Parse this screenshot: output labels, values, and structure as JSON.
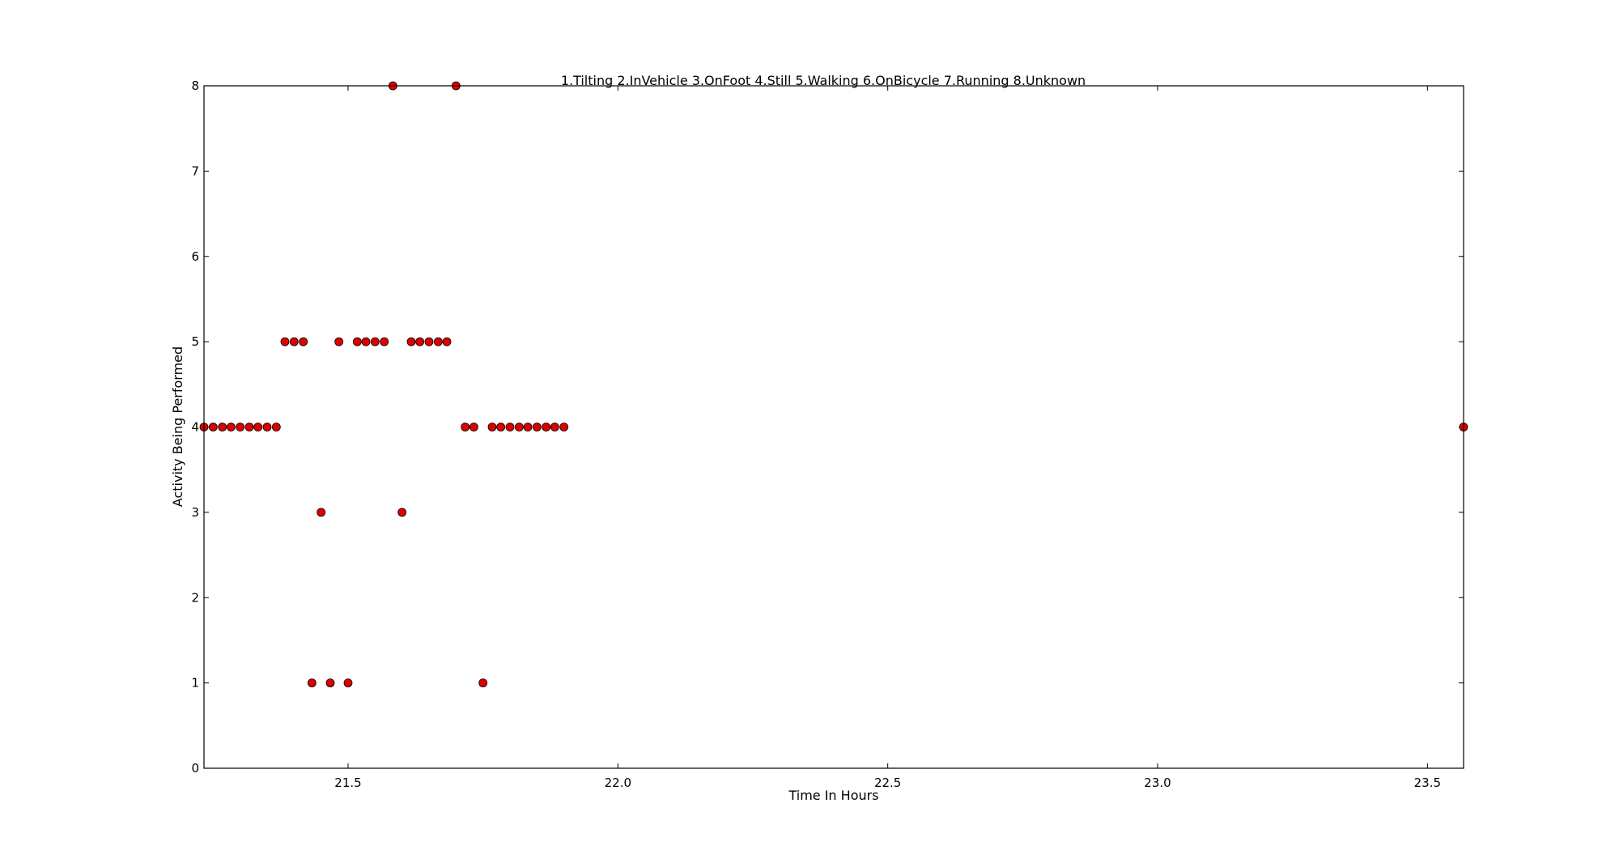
{
  "chart_data": {
    "type": "scatter",
    "title": "1.Tilting 2.InVehicle 3.OnFoot 4.Still 5.Walking 6.OnBicycle 7.Running 8.Unknown",
    "xlabel": "Time In Hours",
    "ylabel": "Activity Being Performed",
    "xlim": [
      21.233,
      23.567
    ],
    "ylim": [
      0,
      8
    ],
    "x_ticks": [
      21.5,
      22.0,
      22.5,
      23.0,
      23.5
    ],
    "x_tick_labels": [
      "21.5",
      "22.0",
      "22.5",
      "23.0",
      "23.5"
    ],
    "y_ticks": [
      0,
      1,
      2,
      3,
      4,
      5,
      6,
      7,
      8
    ],
    "y_tick_labels": [
      "0",
      "1",
      "2",
      "3",
      "4",
      "5",
      "6",
      "7",
      "8"
    ],
    "grid": false,
    "marker_color": "#dd0000",
    "marker_edge_color": "#000000",
    "series": [
      {
        "points": [
          [
            21.233,
            4
          ],
          [
            21.25,
            4
          ],
          [
            21.267,
            4
          ],
          [
            21.283,
            4
          ],
          [
            21.3,
            4
          ],
          [
            21.317,
            4
          ],
          [
            21.333,
            4
          ],
          [
            21.35,
            4
          ],
          [
            21.367,
            4
          ],
          [
            21.383,
            5
          ],
          [
            21.4,
            5
          ],
          [
            21.417,
            5
          ],
          [
            21.433,
            1
          ],
          [
            21.45,
            3
          ],
          [
            21.467,
            1
          ],
          [
            21.483,
            5
          ],
          [
            21.5,
            1
          ],
          [
            21.517,
            5
          ],
          [
            21.533,
            5
          ],
          [
            21.55,
            5
          ],
          [
            21.567,
            5
          ],
          [
            21.583,
            8
          ],
          [
            21.6,
            3
          ],
          [
            21.617,
            5
          ],
          [
            21.633,
            5
          ],
          [
            21.65,
            5
          ],
          [
            21.667,
            5
          ],
          [
            21.683,
            5
          ],
          [
            21.7,
            8
          ],
          [
            21.717,
            4
          ],
          [
            21.733,
            4
          ],
          [
            21.75,
            1
          ],
          [
            21.767,
            4
          ],
          [
            21.783,
            4
          ],
          [
            21.8,
            4
          ],
          [
            21.817,
            4
          ],
          [
            21.833,
            4
          ],
          [
            21.85,
            4
          ],
          [
            21.867,
            4
          ],
          [
            21.883,
            4
          ],
          [
            21.9,
            4
          ],
          [
            23.567,
            4
          ]
        ]
      }
    ]
  }
}
